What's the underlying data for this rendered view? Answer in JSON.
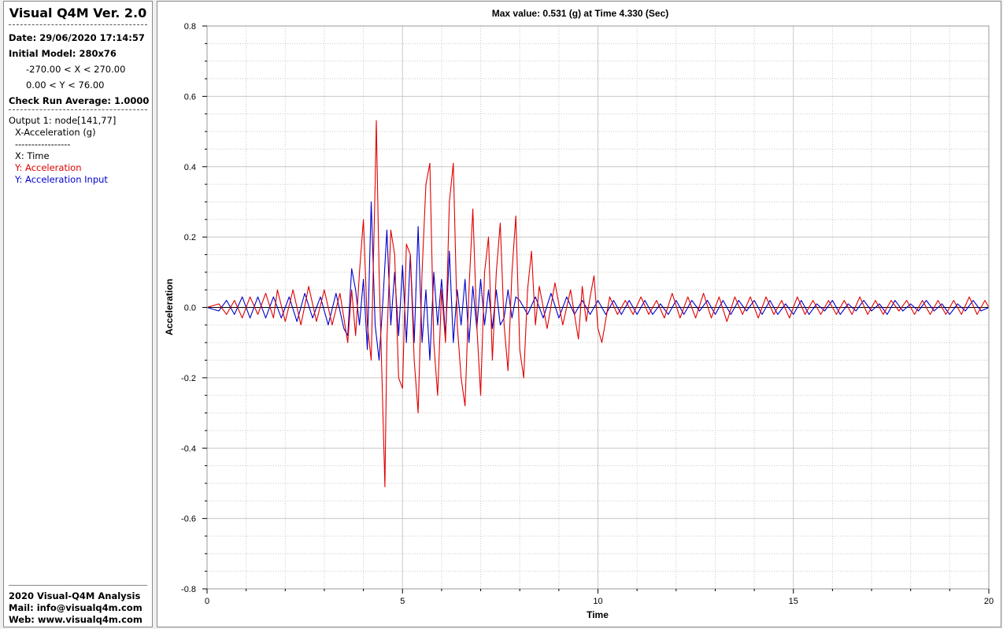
{
  "sidebar": {
    "app_title": "Visual Q4M Ver. 2.0",
    "date": "Date: 29/06/2020 17:14:57",
    "initial_model": "Initial Model: 280x76",
    "x_range": "-270.00 < X < 270.00",
    "y_range": "0.00 < Y < 76.00",
    "check_run": "Check Run Average: 1.0000",
    "output": "Output 1: node[141,77]",
    "quantity": "X-Acceleration (g)",
    "divider": "-----------------",
    "x_legend": "X: Time",
    "y_legend_1": "Y: Acceleration",
    "y_legend_2": "Y: Acceleration Input",
    "footer": {
      "line1": "2020 Visual-Q4M Analysis",
      "line2": "Mail: info@visualq4m.com",
      "line3": "Web: www.visualq4m.com"
    }
  },
  "colors": {
    "acceleration": "#e00000",
    "acceleration_input": "#0000cc",
    "grid": "#c8c8c8",
    "zero_line": "#000000"
  },
  "chart_data": {
    "type": "line",
    "title": "Max value: 0.531 (g) at Time 4.330 (Sec)",
    "xlabel": "Time",
    "ylabel": "Acceleration",
    "xlim": [
      0,
      20
    ],
    "ylim": [
      -0.8,
      0.8
    ],
    "x_ticks": [
      "0",
      "5",
      "10",
      "15",
      "20"
    ],
    "y_ticks": [
      "0.8",
      "0.6",
      "0.4",
      "0.2",
      "0.0",
      "-0.2",
      "-0.4",
      "-0.6",
      "-0.8"
    ],
    "grid": true,
    "series": [
      {
        "name": "Acceleration",
        "x": [
          0,
          0.3,
          0.5,
          0.7,
          0.9,
          1.1,
          1.3,
          1.5,
          1.7,
          1.8,
          2.0,
          2.2,
          2.4,
          2.6,
          2.8,
          3.0,
          3.2,
          3.4,
          3.6,
          3.7,
          3.8,
          3.9,
          4.0,
          4.1,
          4.2,
          4.3,
          4.33,
          4.4,
          4.5,
          4.55,
          4.6,
          4.7,
          4.8,
          4.9,
          5.0,
          5.1,
          5.2,
          5.3,
          5.4,
          5.5,
          5.6,
          5.7,
          5.8,
          5.9,
          6.0,
          6.1,
          6.2,
          6.3,
          6.4,
          6.5,
          6.6,
          6.7,
          6.8,
          6.9,
          7.0,
          7.1,
          7.2,
          7.3,
          7.4,
          7.5,
          7.6,
          7.7,
          7.8,
          7.9,
          8.0,
          8.1,
          8.2,
          8.3,
          8.4,
          8.5,
          8.7,
          8.9,
          9.1,
          9.3,
          9.5,
          9.6,
          9.7,
          9.8,
          9.9,
          10.0,
          10.1,
          10.3,
          10.5,
          10.7,
          10.9,
          11.1,
          11.3,
          11.5,
          11.7,
          11.9,
          12.1,
          12.3,
          12.5,
          12.7,
          12.9,
          13.1,
          13.3,
          13.5,
          13.7,
          13.9,
          14.1,
          14.3,
          14.5,
          14.7,
          14.9,
          15.1,
          15.3,
          15.5,
          15.7,
          15.9,
          16.1,
          16.3,
          16.5,
          16.7,
          16.9,
          17.1,
          17.3,
          17.5,
          17.7,
          17.9,
          18.1,
          18.3,
          18.5,
          18.7,
          18.9,
          19.1,
          19.3,
          19.5,
          19.7,
          19.9,
          20.0
        ],
        "y": [
          0,
          0.01,
          -0.02,
          0.02,
          -0.03,
          0.03,
          -0.02,
          0.04,
          -0.03,
          0.05,
          -0.04,
          0.05,
          -0.05,
          0.06,
          -0.04,
          0.05,
          -0.05,
          0.04,
          -0.1,
          0.05,
          -0.08,
          0.1,
          0.25,
          -0.05,
          -0.15,
          0.35,
          0.531,
          0.1,
          -0.3,
          -0.51,
          -0.1,
          0.22,
          0.15,
          -0.2,
          -0.23,
          0.18,
          0.15,
          -0.15,
          -0.3,
          0.1,
          0.35,
          0.41,
          -0.1,
          -0.25,
          0.05,
          -0.1,
          0.3,
          0.41,
          -0.05,
          -0.2,
          -0.28,
          0.05,
          0.28,
          -0.05,
          -0.25,
          0.1,
          0.2,
          -0.15,
          0.1,
          0.24,
          -0.05,
          -0.18,
          0.1,
          0.26,
          -0.12,
          -0.2,
          0.05,
          0.16,
          -0.05,
          0.06,
          -0.06,
          0.07,
          -0.05,
          0.05,
          -0.09,
          0.06,
          -0.04,
          0.03,
          0.09,
          -0.06,
          -0.1,
          0.03,
          -0.02,
          0.02,
          -0.02,
          0.03,
          -0.02,
          0.02,
          -0.03,
          0.04,
          -0.03,
          0.03,
          -0.03,
          0.04,
          -0.03,
          0.03,
          -0.04,
          0.03,
          -0.02,
          0.03,
          -0.03,
          0.03,
          -0.02,
          0.02,
          -0.03,
          0.03,
          -0.02,
          0.02,
          -0.02,
          0.02,
          -0.02,
          0.02,
          -0.02,
          0.03,
          -0.02,
          0.02,
          -0.02,
          0.02,
          -0.01,
          0.02,
          -0.02,
          0.02,
          -0.02,
          0.02,
          -0.02,
          0.02,
          -0.02,
          0.03,
          -0.02,
          0.02,
          0
        ]
      },
      {
        "name": "Acceleration Input",
        "x": [
          0,
          0.3,
          0.5,
          0.7,
          0.9,
          1.1,
          1.3,
          1.5,
          1.7,
          1.9,
          2.1,
          2.3,
          2.5,
          2.7,
          2.9,
          3.1,
          3.3,
          3.5,
          3.6,
          3.7,
          3.8,
          3.9,
          4.0,
          4.1,
          4.2,
          4.3,
          4.4,
          4.5,
          4.6,
          4.7,
          4.8,
          4.9,
          5.0,
          5.1,
          5.2,
          5.3,
          5.4,
          5.5,
          5.6,
          5.7,
          5.8,
          5.9,
          6.0,
          6.1,
          6.2,
          6.3,
          6.4,
          6.5,
          6.6,
          6.7,
          6.8,
          6.9,
          7.0,
          7.1,
          7.2,
          7.3,
          7.4,
          7.5,
          7.6,
          7.7,
          7.8,
          7.9,
          8.0,
          8.2,
          8.4,
          8.6,
          8.8,
          9.0,
          9.2,
          9.4,
          9.6,
          9.8,
          10.0,
          10.2,
          10.4,
          10.6,
          10.8,
          11.0,
          11.2,
          11.4,
          11.6,
          11.8,
          12.0,
          12.2,
          12.4,
          12.6,
          12.8,
          13.0,
          13.2,
          13.4,
          13.6,
          13.8,
          14.0,
          14.2,
          14.4,
          14.6,
          14.8,
          15.0,
          15.2,
          15.4,
          15.6,
          15.8,
          16.0,
          16.2,
          16.4,
          16.6,
          16.8,
          17.0,
          17.2,
          17.4,
          17.6,
          17.8,
          18.0,
          18.2,
          18.4,
          18.6,
          18.8,
          19.0,
          19.2,
          19.4,
          19.6,
          19.8,
          20.0
        ],
        "y": [
          0,
          -0.01,
          0.02,
          -0.02,
          0.03,
          -0.03,
          0.03,
          -0.03,
          0.03,
          -0.03,
          0.03,
          -0.04,
          0.04,
          -0.03,
          0.03,
          -0.05,
          0.04,
          -0.06,
          -0.08,
          0.11,
          0.05,
          -0.05,
          0.08,
          -0.12,
          0.3,
          -0.05,
          -0.15,
          0.02,
          0.22,
          -0.05,
          0.1,
          -0.08,
          0.12,
          -0.1,
          0.15,
          -0.1,
          0.23,
          -0.1,
          0.05,
          -0.15,
          0.1,
          -0.05,
          0.08,
          -0.08,
          0.16,
          -0.1,
          0.05,
          -0.05,
          0.08,
          -0.1,
          0.06,
          -0.06,
          0.08,
          -0.05,
          0.05,
          -0.06,
          0.05,
          -0.05,
          -0.03,
          0.05,
          -0.03,
          0.03,
          0.02,
          -0.02,
          0.03,
          -0.03,
          0.04,
          -0.03,
          0.03,
          -0.02,
          0.02,
          -0.02,
          0.02,
          -0.02,
          0.02,
          -0.02,
          0.02,
          -0.02,
          0.02,
          -0.02,
          0.01,
          -0.02,
          0.02,
          -0.02,
          0.02,
          -0.01,
          0.02,
          -0.02,
          0.02,
          -0.02,
          0.02,
          -0.01,
          0.02,
          -0.02,
          0.02,
          -0.02,
          0.01,
          -0.02,
          0.02,
          -0.02,
          0.01,
          -0.01,
          0.02,
          -0.02,
          0.01,
          -0.01,
          0.02,
          -0.01,
          0.01,
          -0.02,
          0.02,
          -0.01,
          0.01,
          -0.01,
          0.02,
          -0.01,
          0.01,
          -0.02,
          0.01,
          -0.01,
          0.02,
          -0.01,
          0.0
        ]
      }
    ]
  }
}
